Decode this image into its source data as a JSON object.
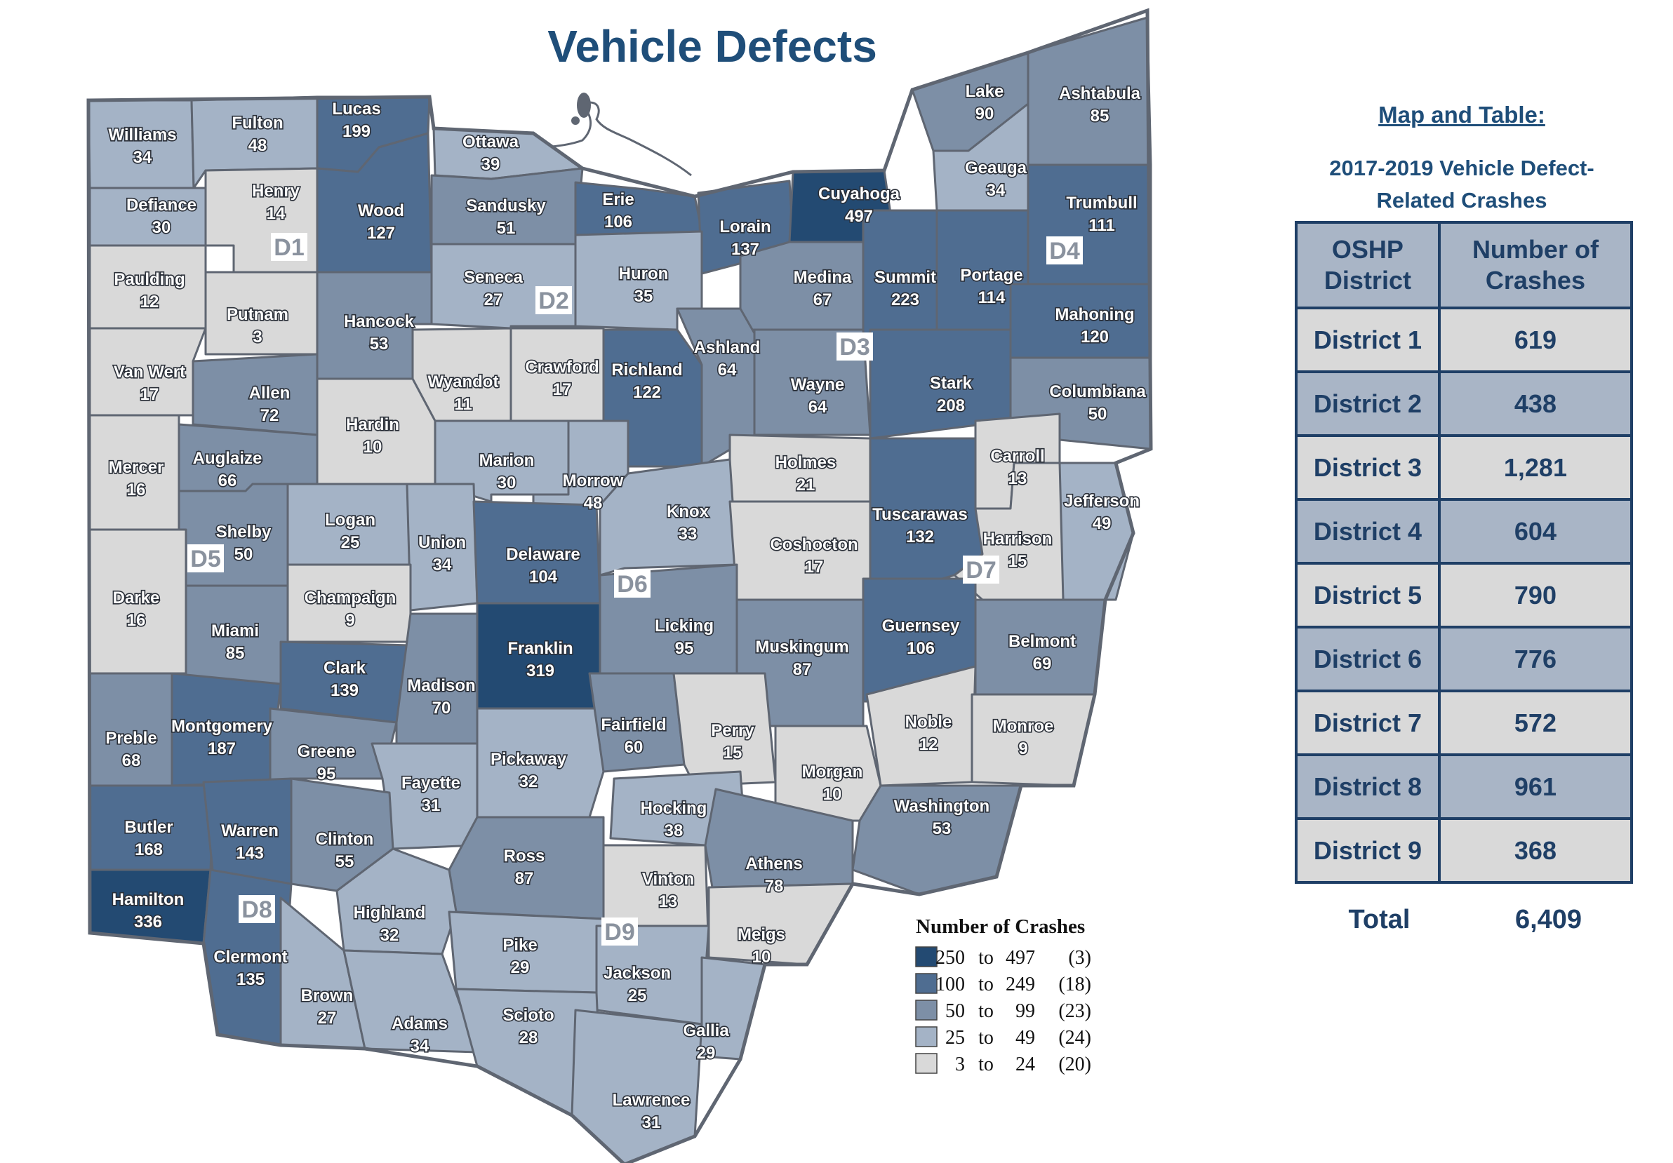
{
  "title": "Vehicle Defects",
  "panel": {
    "heading": "Map and Table",
    "heading_colon": ":",
    "subtitle": "2017-2019 Vehicle Defect-Related Crashes",
    "table_headers": [
      "OSHP District",
      "Number of Crashes"
    ],
    "rows": [
      {
        "district": "District 1",
        "crashes": "619"
      },
      {
        "district": "District 2",
        "crashes": "438"
      },
      {
        "district": "District 3",
        "crashes": "1,281"
      },
      {
        "district": "District 4",
        "crashes": "604"
      },
      {
        "district": "District 5",
        "crashes": "790"
      },
      {
        "district": "District 6",
        "crashes": "776"
      },
      {
        "district": "District 7",
        "crashes": "572"
      },
      {
        "district": "District 8",
        "crashes": "961"
      },
      {
        "district": "District 9",
        "crashes": "368"
      }
    ],
    "total_label": "Total",
    "total_value": "6,409"
  },
  "legend": {
    "title": "Number of Crashes",
    "classes": [
      {
        "from": "250",
        "to": "497",
        "count": "(3)",
        "color": "#234a72"
      },
      {
        "from": "100",
        "to": "249",
        "count": "(18)",
        "color": "#4f6d91"
      },
      {
        "from": "50",
        "to": "99",
        "count": "(23)",
        "color": "#7d8fa6"
      },
      {
        "from": "25",
        "to": "49",
        "count": "(24)",
        "color": "#a4b3c6"
      },
      {
        "from": "3",
        "to": "24",
        "count": "(20)",
        "color": "#d9d9d9"
      }
    ],
    "to_word": "to"
  },
  "district_tags": [
    "D1",
    "D2",
    "D3",
    "D4",
    "D5",
    "D6",
    "D7",
    "D8",
    "D9"
  ],
  "counties": [
    {
      "name": "Williams",
      "value": 34
    },
    {
      "name": "Fulton",
      "value": 48
    },
    {
      "name": "Lucas",
      "value": 199
    },
    {
      "name": "Ottawa",
      "value": 39
    },
    {
      "name": "Defiance",
      "value": 30
    },
    {
      "name": "Henry",
      "value": 14
    },
    {
      "name": "Wood",
      "value": 127
    },
    {
      "name": "Sandusky",
      "value": 51
    },
    {
      "name": "Erie",
      "value": 106
    },
    {
      "name": "Lorain",
      "value": 137
    },
    {
      "name": "Cuyahoga",
      "value": 497
    },
    {
      "name": "Lake",
      "value": 90
    },
    {
      "name": "Geauga",
      "value": 34
    },
    {
      "name": "Ashtabula",
      "value": 85
    },
    {
      "name": "Trumbull",
      "value": 111
    },
    {
      "name": "Paulding",
      "value": 12
    },
    {
      "name": "Putnam",
      "value": 3
    },
    {
      "name": "Hancock",
      "value": 53
    },
    {
      "name": "Seneca",
      "value": 27
    },
    {
      "name": "Huron",
      "value": 35
    },
    {
      "name": "Medina",
      "value": 67
    },
    {
      "name": "Summit",
      "value": 223
    },
    {
      "name": "Portage",
      "value": 114
    },
    {
      "name": "Mahoning",
      "value": 120
    },
    {
      "name": "Van Wert",
      "value": 17
    },
    {
      "name": "Allen",
      "value": 72
    },
    {
      "name": "Wyandot",
      "value": 11
    },
    {
      "name": "Crawford",
      "value": 17
    },
    {
      "name": "Richland",
      "value": 122
    },
    {
      "name": "Ashland",
      "value": 64
    },
    {
      "name": "Wayne",
      "value": 64
    },
    {
      "name": "Stark",
      "value": 208
    },
    {
      "name": "Columbiana",
      "value": 50
    },
    {
      "name": "Mercer",
      "value": 16
    },
    {
      "name": "Auglaize",
      "value": 66
    },
    {
      "name": "Hardin",
      "value": 10
    },
    {
      "name": "Marion",
      "value": 30
    },
    {
      "name": "Morrow",
      "value": 48
    },
    {
      "name": "Holmes",
      "value": 21
    },
    {
      "name": "Carroll",
      "value": 13
    },
    {
      "name": "Jefferson",
      "value": 49
    },
    {
      "name": "Shelby",
      "value": 50
    },
    {
      "name": "Logan",
      "value": 25
    },
    {
      "name": "Union",
      "value": 34
    },
    {
      "name": "Delaware",
      "value": 104
    },
    {
      "name": "Knox",
      "value": 33
    },
    {
      "name": "Coshocton",
      "value": 17
    },
    {
      "name": "Tuscarawas",
      "value": 132
    },
    {
      "name": "Harrison",
      "value": 15
    },
    {
      "name": "Darke",
      "value": 16
    },
    {
      "name": "Miami",
      "value": 85
    },
    {
      "name": "Champaign",
      "value": 9
    },
    {
      "name": "Franklin",
      "value": 319
    },
    {
      "name": "Licking",
      "value": 95
    },
    {
      "name": "Muskingum",
      "value": 87
    },
    {
      "name": "Guernsey",
      "value": 106
    },
    {
      "name": "Belmont",
      "value": 69
    },
    {
      "name": "Clark",
      "value": 139
    },
    {
      "name": "Madison",
      "value": 70
    },
    {
      "name": "Preble",
      "value": 68
    },
    {
      "name": "Montgomery",
      "value": 187
    },
    {
      "name": "Greene",
      "value": 95
    },
    {
      "name": "Fayette",
      "value": 31
    },
    {
      "name": "Pickaway",
      "value": 32
    },
    {
      "name": "Fairfield",
      "value": 60
    },
    {
      "name": "Perry",
      "value": 15
    },
    {
      "name": "Morgan",
      "value": 10
    },
    {
      "name": "Noble",
      "value": 12
    },
    {
      "name": "Monroe",
      "value": 9
    },
    {
      "name": "Washington",
      "value": 53
    },
    {
      "name": "Butler",
      "value": 168
    },
    {
      "name": "Warren",
      "value": 143
    },
    {
      "name": "Clinton",
      "value": 55
    },
    {
      "name": "Hocking",
      "value": 38
    },
    {
      "name": "Athens",
      "value": 78
    },
    {
      "name": "Ross",
      "value": 87
    },
    {
      "name": "Vinton",
      "value": 13
    },
    {
      "name": "Hamilton",
      "value": 336
    },
    {
      "name": "Highland",
      "value": 32
    },
    {
      "name": "Meigs",
      "value": 10
    },
    {
      "name": "Clermont",
      "value": 135
    },
    {
      "name": "Pike",
      "value": 29
    },
    {
      "name": "Jackson",
      "value": 25
    },
    {
      "name": "Brown",
      "value": 27
    },
    {
      "name": "Adams",
      "value": 34
    },
    {
      "name": "Scioto",
      "value": 28
    },
    {
      "name": "Gallia",
      "value": 29
    },
    {
      "name": "Lawrence",
      "value": 31
    }
  ]
}
